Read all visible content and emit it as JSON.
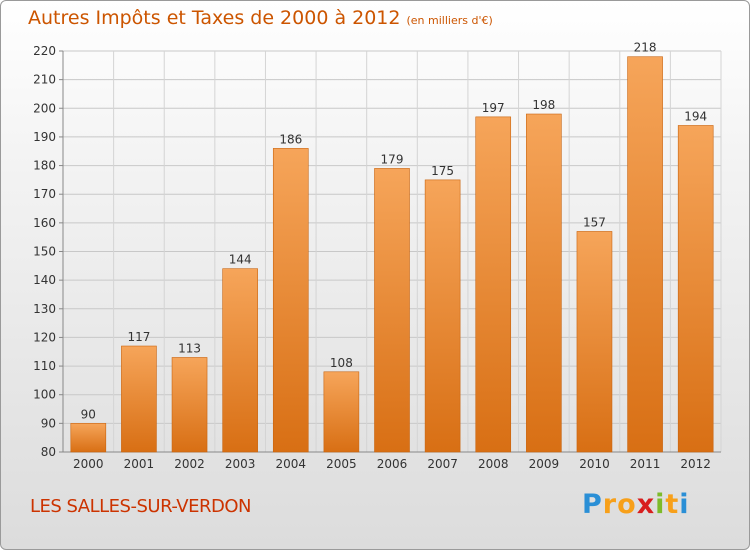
{
  "page": {
    "title": "Autres Impôts et Taxes de 2000 à 2012",
    "unit": "(en milliers d'€)",
    "commune": "LES SALLES-SUR-VERDON",
    "logo": {
      "letters": [
        "P",
        "r",
        "o",
        "x",
        "i",
        "t",
        "i"
      ],
      "colors": [
        "#2a8fd6",
        "#f7a01a",
        "#f7a01a",
        "#d81e1e",
        "#7dbb2a",
        "#f7a01a",
        "#2a8fd6"
      ]
    }
  },
  "chart_data": {
    "type": "bar",
    "categories": [
      "2000",
      "2001",
      "2002",
      "2003",
      "2004",
      "2005",
      "2006",
      "2007",
      "2008",
      "2009",
      "2010",
      "2011",
      "2012"
    ],
    "values": [
      90,
      117,
      113,
      144,
      186,
      108,
      179,
      175,
      197,
      198,
      157,
      218,
      194
    ],
    "ylim": [
      80,
      220
    ],
    "yticks": [
      80,
      90,
      100,
      110,
      120,
      130,
      140,
      150,
      160,
      170,
      180,
      190,
      200,
      210,
      220
    ],
    "grid": true,
    "bar_color": "#ee8a2e",
    "text_color": "#333333",
    "xlabel": "",
    "ylabel": ""
  }
}
